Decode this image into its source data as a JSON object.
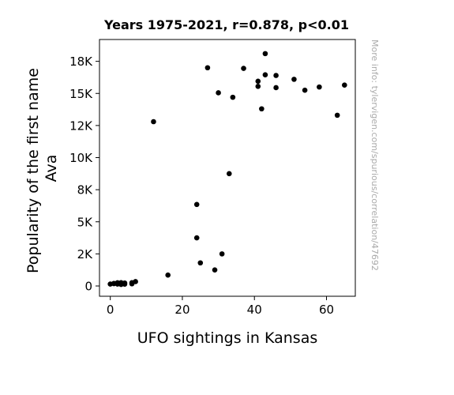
{
  "chart_data": {
    "type": "scatter",
    "title": "Years 1975-2021, r=0.878, p<0.01",
    "xlabel": "UFO sightings in Kansas",
    "ylabel_lines": [
      "Popularity of the first name",
      "Ava"
    ],
    "xlim": [
      -3,
      68
    ],
    "ylim": [
      -800,
      19200
    ],
    "x_ticks": [
      0,
      20,
      40,
      60
    ],
    "x_tick_labels": [
      "0",
      "20",
      "40",
      "60"
    ],
    "y_ticks": [
      0,
      2500,
      5000,
      7500,
      10000,
      12500,
      15000,
      17500
    ],
    "y_tick_labels": [
      "0",
      "2K",
      "5K",
      "8K",
      "10K",
      "12K",
      "15K",
      "18K"
    ],
    "grid": false,
    "marker_color": "#000000",
    "watermark": "More info: tylervigen.com/spurious/correlation/47692",
    "points": [
      [
        0,
        150
      ],
      [
        1,
        180
      ],
      [
        1,
        200
      ],
      [
        2,
        150
      ],
      [
        2,
        250
      ],
      [
        3,
        120
      ],
      [
        3,
        200
      ],
      [
        3,
        260
      ],
      [
        4,
        140
      ],
      [
        4,
        230
      ],
      [
        6,
        170
      ],
      [
        6,
        260
      ],
      [
        7,
        340
      ],
      [
        12,
        12800
      ],
      [
        16,
        850
      ],
      [
        24,
        6350
      ],
      [
        24,
        3750
      ],
      [
        25,
        1800
      ],
      [
        27,
        17000
      ],
      [
        29,
        1250
      ],
      [
        30,
        15050
      ],
      [
        31,
        2500
      ],
      [
        33,
        8750
      ],
      [
        34,
        14700
      ],
      [
        37,
        16950
      ],
      [
        41,
        15950
      ],
      [
        41,
        15550
      ],
      [
        42,
        13800
      ],
      [
        43,
        18100
      ],
      [
        43,
        16450
      ],
      [
        46,
        16400
      ],
      [
        46,
        15450
      ],
      [
        51,
        16100
      ],
      [
        54,
        15250
      ],
      [
        58,
        15500
      ],
      [
        63,
        13300
      ],
      [
        65,
        15650
      ]
    ]
  }
}
